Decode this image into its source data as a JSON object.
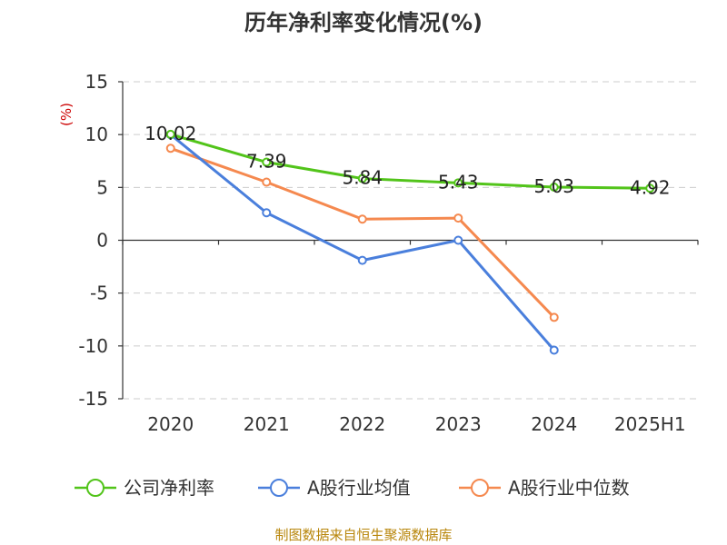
{
  "chart_data": {
    "type": "line",
    "title": "历年净利率变化情况(%)",
    "ylabel": "(%)",
    "xlabel": "",
    "categories": [
      "2020",
      "2021",
      "2022",
      "2023",
      "2024",
      "2025H1"
    ],
    "ylim": [
      -15,
      15
    ],
    "yticks": [
      "15",
      "10",
      "5",
      "0",
      "-5",
      "-10",
      "-15"
    ],
    "grid": true,
    "legend_position": "bottom",
    "series": [
      {
        "name": "公司净利率",
        "color": "#52c41a",
        "values": [
          10.02,
          7.39,
          5.84,
          5.43,
          5.03,
          4.92
        ],
        "labels": [
          "10.02",
          "7.39",
          "5.84",
          "5.43",
          "5.03",
          "4.92"
        ]
      },
      {
        "name": "A股行业均值",
        "color": "#4a7fdc",
        "values": [
          10.0,
          2.6,
          -1.9,
          0.0,
          -10.4,
          null
        ]
      },
      {
        "name": "A股行业中位数",
        "color": "#f5894f",
        "values": [
          8.7,
          5.5,
          2.0,
          2.1,
          -7.3,
          null
        ]
      }
    ]
  },
  "source": "制图数据来自恒生聚源数据库"
}
